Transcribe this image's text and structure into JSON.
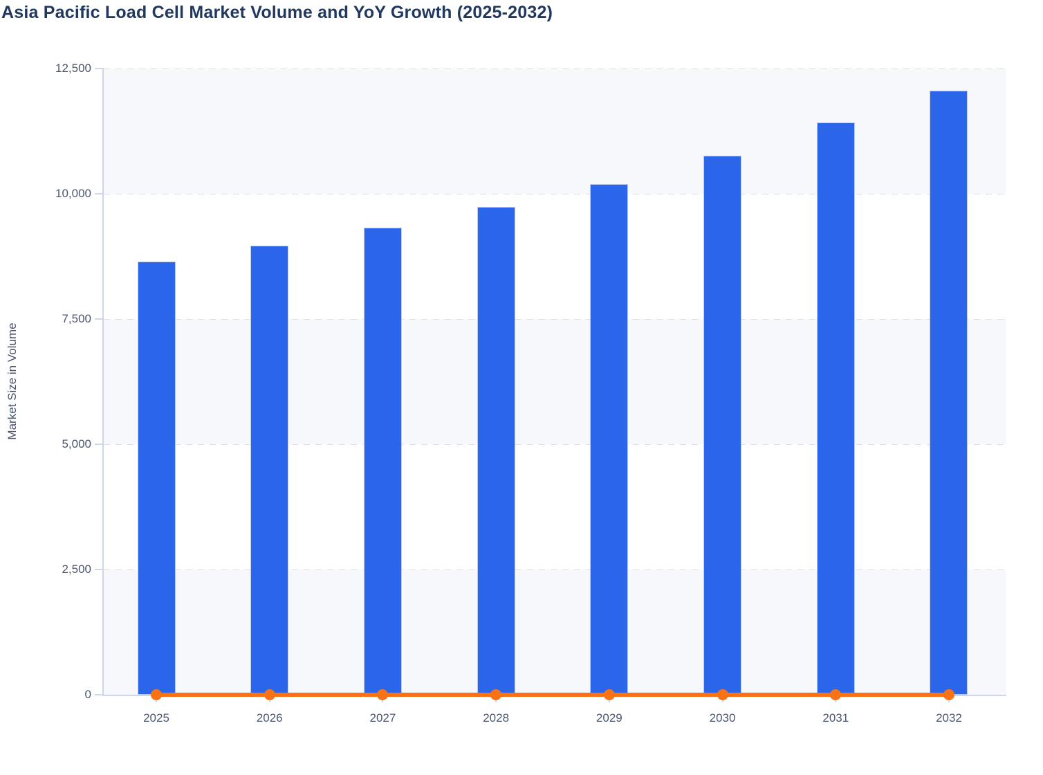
{
  "page": {
    "title": "Asia Pacific Load Cell Market Volume and YoY Growth (2025-2032)"
  },
  "chart_data": {
    "type": "bar",
    "title": "Asia Pacific Load Cell Market Volume and YoY Growth (2025-2032)",
    "xlabel": "",
    "ylabel": "Market Size in Volume",
    "categories": [
      "2025",
      "2026",
      "2027",
      "2028",
      "2029",
      "2030",
      "2031",
      "2032"
    ],
    "series": [
      {
        "name": "Market Size in Volume",
        "type": "bar",
        "color": "#2b66ea",
        "values": [
          8650,
          8960,
          9320,
          9740,
          10190,
          10760,
          11420,
          12060
        ]
      },
      {
        "name": "YoY Growth",
        "type": "line",
        "color": "#f97316",
        "values": [
          0,
          0,
          0,
          0,
          0,
          0,
          0,
          0
        ]
      }
    ],
    "ylim": [
      0,
      12500
    ],
    "y_ticks": [
      0,
      2500,
      5000,
      7500,
      10000,
      12500
    ],
    "y_tick_labels": [
      "0",
      "2,500",
      "5,000",
      "7,500",
      "10,000",
      "12,500"
    ],
    "grid": "horizontal dashed gridlines at every 2,500",
    "plot_bands": "alternating horizontal stripes #f7f8fb and #ffffff between gridlines, shaded band at top interval",
    "legend": "none",
    "yoy_line_renders_flat_at_zero": true
  },
  "colors": {
    "bar_fill": "#2b66ea",
    "line_and_marker": "#f97316",
    "axis_line": "#cdd6ec",
    "gridline": "#dadee8",
    "band_shade": "#f7f8fb",
    "title_text": "#21395f",
    "tick_label_text": "#4b576f",
    "axis_title_text": "#46536e"
  }
}
